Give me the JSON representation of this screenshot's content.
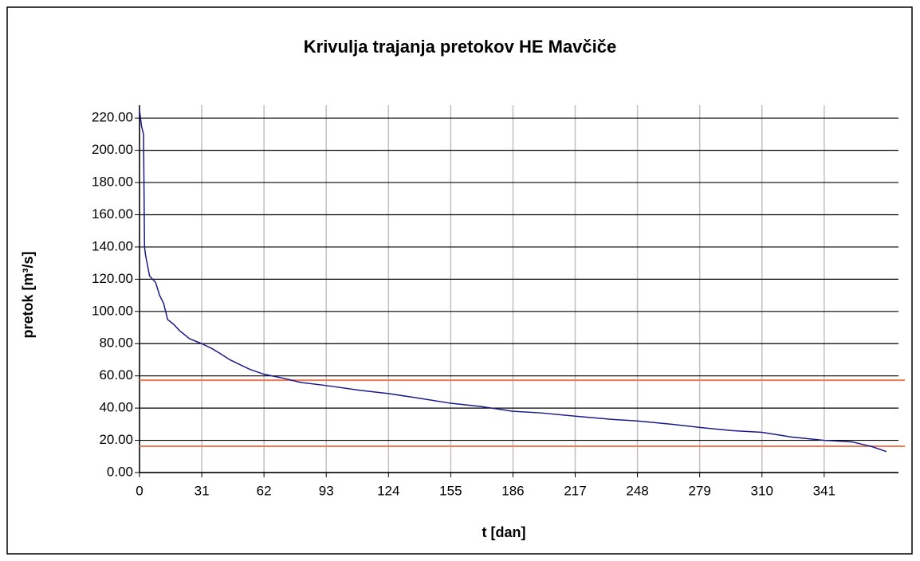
{
  "chart_data": {
    "type": "line",
    "title": "Krivulja trajanja pretokov HE Mavčiče",
    "x_label": "t [dan]",
    "y_label": "pretok [m³/s]",
    "x": [
      0,
      1,
      2,
      2.5,
      3,
      5,
      8,
      10,
      12,
      14,
      17,
      20,
      25,
      31,
      36,
      40,
      45,
      50,
      55,
      62,
      70,
      80,
      93,
      110,
      124,
      140,
      155,
      170,
      186,
      200,
      217,
      235,
      248,
      265,
      279,
      295,
      310,
      325,
      341,
      355,
      365,
      372
    ],
    "series": [
      {
        "color": "#1a1a8c",
        "values": [
          225,
          215,
          210,
          140,
          135,
          122,
          118,
          110,
          105,
          95,
          92,
          88,
          83,
          80,
          77,
          74,
          70,
          67,
          64,
          61,
          59,
          56,
          54,
          51,
          49,
          46,
          43,
          41,
          38,
          37,
          35,
          33,
          32,
          30,
          28,
          26,
          25,
          22,
          20,
          19,
          16,
          13
        ]
      }
    ],
    "hlines": [
      {
        "value": 57.3,
        "color": "#f07a5a"
      },
      {
        "value": 16.3,
        "color": "#f07a5a"
      }
    ],
    "xlim": [
      0,
      378
    ],
    "ylim": [
      0,
      228
    ],
    "xticks": [
      0,
      31,
      62,
      93,
      124,
      155,
      186,
      217,
      248,
      279,
      310,
      341
    ],
    "yticks": [
      {
        "value": 0,
        "label": "0.00"
      },
      {
        "value": 20,
        "label": "20.00"
      },
      {
        "value": 40,
        "label": "40.00"
      },
      {
        "value": 60,
        "label": "60.00"
      },
      {
        "value": 80,
        "label": "80.00"
      },
      {
        "value": 100,
        "label": "100.00"
      },
      {
        "value": 120,
        "label": "120.00"
      },
      {
        "value": 140,
        "label": "140.00"
      },
      {
        "value": 160,
        "label": "160.00"
      },
      {
        "value": 180,
        "label": "180.00"
      },
      {
        "value": 200,
        "label": "200.00"
      },
      {
        "value": 220,
        "label": "220.00"
      }
    ],
    "grid": true
  }
}
